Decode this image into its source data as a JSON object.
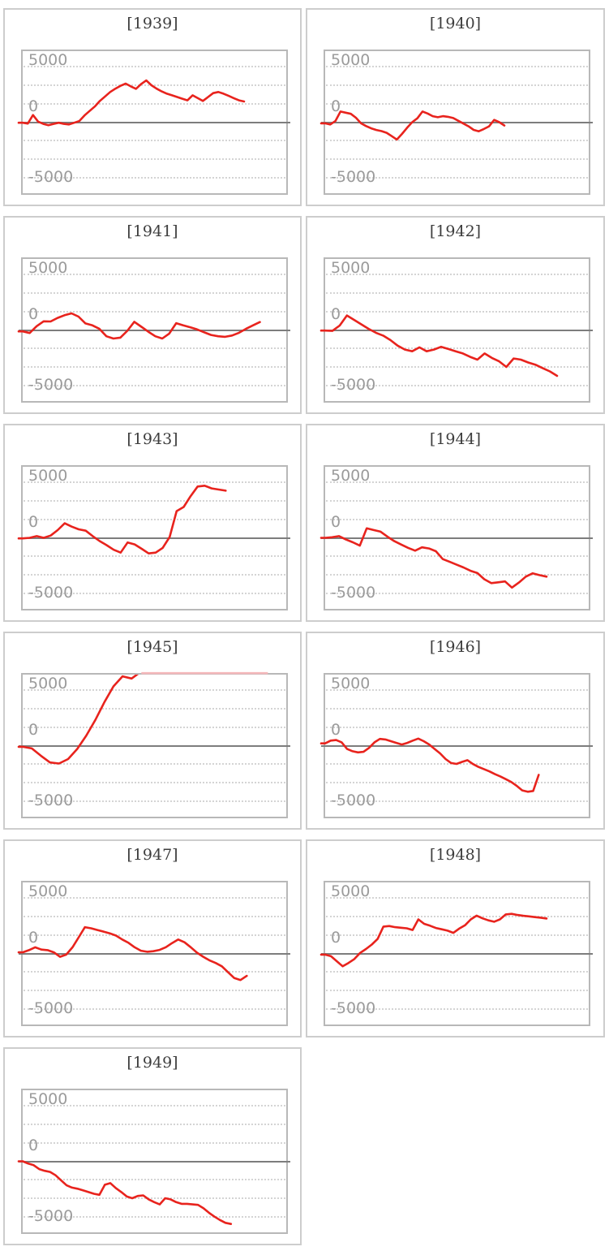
{
  "page": {
    "background": "#ffffff"
  },
  "chart_data": {
    "type": "line",
    "layout": "small-multiples-grid-2col",
    "title": "",
    "xlabel": "",
    "ylabel": "",
    "legend": "none",
    "grid": "dotted-horizontal",
    "series_color": "#e8231d",
    "clipped_series_color": "#f5b8bb",
    "zero_line_color": "#7d7d7d",
    "grid_color": "#d4d4d4",
    "plot_border_color": "#b8b8b8",
    "panel_border_color": "#cdcdcd",
    "tick_label_color": "#9b9b9b",
    "title_color": "#3d3d3d",
    "y_axis": {
      "range": [
        -6350,
        6350
      ],
      "gridline_values": [
        5000,
        3333,
        1667,
        -1667,
        -3333,
        -5000
      ],
      "ticks": [
        {
          "label": "5000",
          "value": 5000
        },
        {
          "label": "0",
          "value": 0
        },
        {
          "label": "-5000",
          "value": -5000
        }
      ]
    },
    "panels": [
      {
        "title": "[1939]",
        "end_frac": 0.84,
        "values": [
          -50,
          -120,
          640,
          50,
          -150,
          -270,
          -150,
          -50,
          -150,
          -200,
          -50,
          100,
          600,
          1000,
          1400,
          1900,
          2300,
          2700,
          3000,
          3250,
          3450,
          3200,
          2980,
          3400,
          3730,
          3300,
          3000,
          2750,
          2550,
          2400,
          2250,
          2100,
          1950,
          2400,
          2150,
          1900,
          2250,
          2600,
          2700,
          2550,
          2350,
          2150,
          1950,
          1850
        ]
      },
      {
        "title": "[1940]",
        "end_frac": 0.68,
        "values": [
          -100,
          -200,
          100,
          950,
          850,
          750,
          400,
          -100,
          -350,
          -550,
          -700,
          -800,
          -950,
          -1250,
          -1550,
          -1050,
          -500,
          0,
          350,
          950,
          780,
          540,
          440,
          540,
          480,
          370,
          120,
          -120,
          -370,
          -690,
          -810,
          -610,
          -370,
          200,
          0,
          -300
        ]
      },
      {
        "title": "[1941]",
        "end_frac": 0.9,
        "values": [
          -120,
          -270,
          340,
          780,
          760,
          1080,
          1320,
          1490,
          1200,
          590,
          415,
          100,
          -560,
          -760,
          -680,
          -70,
          730,
          290,
          -150,
          -560,
          -760,
          -320,
          610,
          415,
          245,
          50,
          -200,
          -440,
          -560,
          -610,
          -490,
          -245,
          100,
          415,
          710
        ]
      },
      {
        "title": "[1942]",
        "end_frac": 0.88,
        "values": [
          -50,
          -80,
          400,
          1300,
          900,
          500,
          100,
          -250,
          -500,
          -900,
          -1400,
          -1750,
          -1900,
          -1550,
          -1900,
          -1750,
          -1500,
          -1700,
          -1900,
          -2100,
          -2400,
          -2650,
          -2100,
          -2500,
          -2800,
          -3300,
          -2550,
          -2650,
          -2900,
          -3100,
          -3400,
          -3700,
          -4100
        ]
      },
      {
        "title": "[1943]",
        "end_frac": 0.77,
        "values": [
          -50,
          0,
          150,
          0,
          200,
          690,
          1300,
          1000,
          760,
          640,
          150,
          -290,
          -660,
          -1070,
          -1320,
          -415,
          -590,
          -980,
          -1390,
          -1320,
          -900,
          70,
          2390,
          2760,
          3730,
          4590,
          4660,
          4420,
          4320,
          4220
        ]
      },
      {
        "title": "[1944]",
        "end_frac": 0.84,
        "values": [
          0,
          50,
          150,
          -150,
          -400,
          -700,
          850,
          700,
          550,
          100,
          -300,
          -600,
          -900,
          -1150,
          -850,
          -950,
          -1200,
          -1900,
          -2150,
          -2400,
          -2650,
          -2950,
          -3150,
          -3700,
          -4050,
          -3980,
          -3900,
          -4450,
          -4000,
          -3470,
          -3170,
          -3340,
          -3470
        ]
      },
      {
        "title": "[1945]",
        "end_frac": 0.93,
        "clip_start_frac": 0.45,
        "values": [
          -100,
          -250,
          -900,
          -1500,
          -1600,
          -1200,
          -300,
          900,
          2300,
          3900,
          5300,
          6200,
          6000,
          6600,
          6700,
          6700,
          6700,
          6700,
          6700,
          6700,
          6700,
          6700,
          6700,
          6700,
          6700,
          6700,
          6700,
          6700
        ]
      },
      {
        "title": "[1946]",
        "end_frac": 0.81,
        "values": [
          200,
          450,
          500,
          300,
          -300,
          -500,
          -600,
          -550,
          -200,
          300,
          600,
          550,
          400,
          250,
          100,
          250,
          450,
          630,
          400,
          100,
          -300,
          -700,
          -1200,
          -1550,
          -1630,
          -1450,
          -1300,
          -1650,
          -1900,
          -2100,
          -2300,
          -2550,
          -2750,
          -3000,
          -3250,
          -3600,
          -4000,
          -4120,
          -4050,
          -2610
        ]
      },
      {
        "title": "[1947]",
        "end_frac": 0.85,
        "values": [
          100,
          300,
          550,
          350,
          300,
          100,
          -300,
          -100,
          550,
          1450,
          2350,
          2250,
          2100,
          1950,
          1800,
          1600,
          1250,
          950,
          550,
          250,
          150,
          200,
          320,
          560,
          930,
          1250,
          1000,
          560,
          70,
          -290,
          -610,
          -850,
          -1150,
          -1680,
          -2200,
          -2370,
          -2000
        ]
      },
      {
        "title": "[1948]",
        "end_frac": 0.84,
        "values": [
          -100,
          -250,
          -700,
          -1150,
          -850,
          -500,
          50,
          400,
          800,
          1300,
          2400,
          2450,
          2350,
          2300,
          2250,
          2100,
          3050,
          2650,
          2480,
          2280,
          2160,
          2040,
          1840,
          2220,
          2520,
          3050,
          3380,
          3140,
          2960,
          2840,
          3050,
          3490,
          3540,
          3440,
          3370,
          3320,
          3250,
          3200,
          3130
        ]
      },
      {
        "title": "[1949]",
        "end_frac": 0.79,
        "values": [
          0,
          -200,
          -350,
          -700,
          -850,
          -950,
          -1250,
          -1700,
          -2150,
          -2350,
          -2450,
          -2600,
          -2750,
          -2900,
          -3000,
          -2100,
          -1950,
          -2400,
          -2750,
          -3150,
          -3300,
          -3100,
          -3050,
          -3400,
          -3650,
          -3850,
          -3300,
          -3400,
          -3650,
          -3800,
          -3800,
          -3850,
          -3900,
          -4200,
          -4600,
          -4950,
          -5250,
          -5500,
          -5600
        ]
      }
    ]
  }
}
